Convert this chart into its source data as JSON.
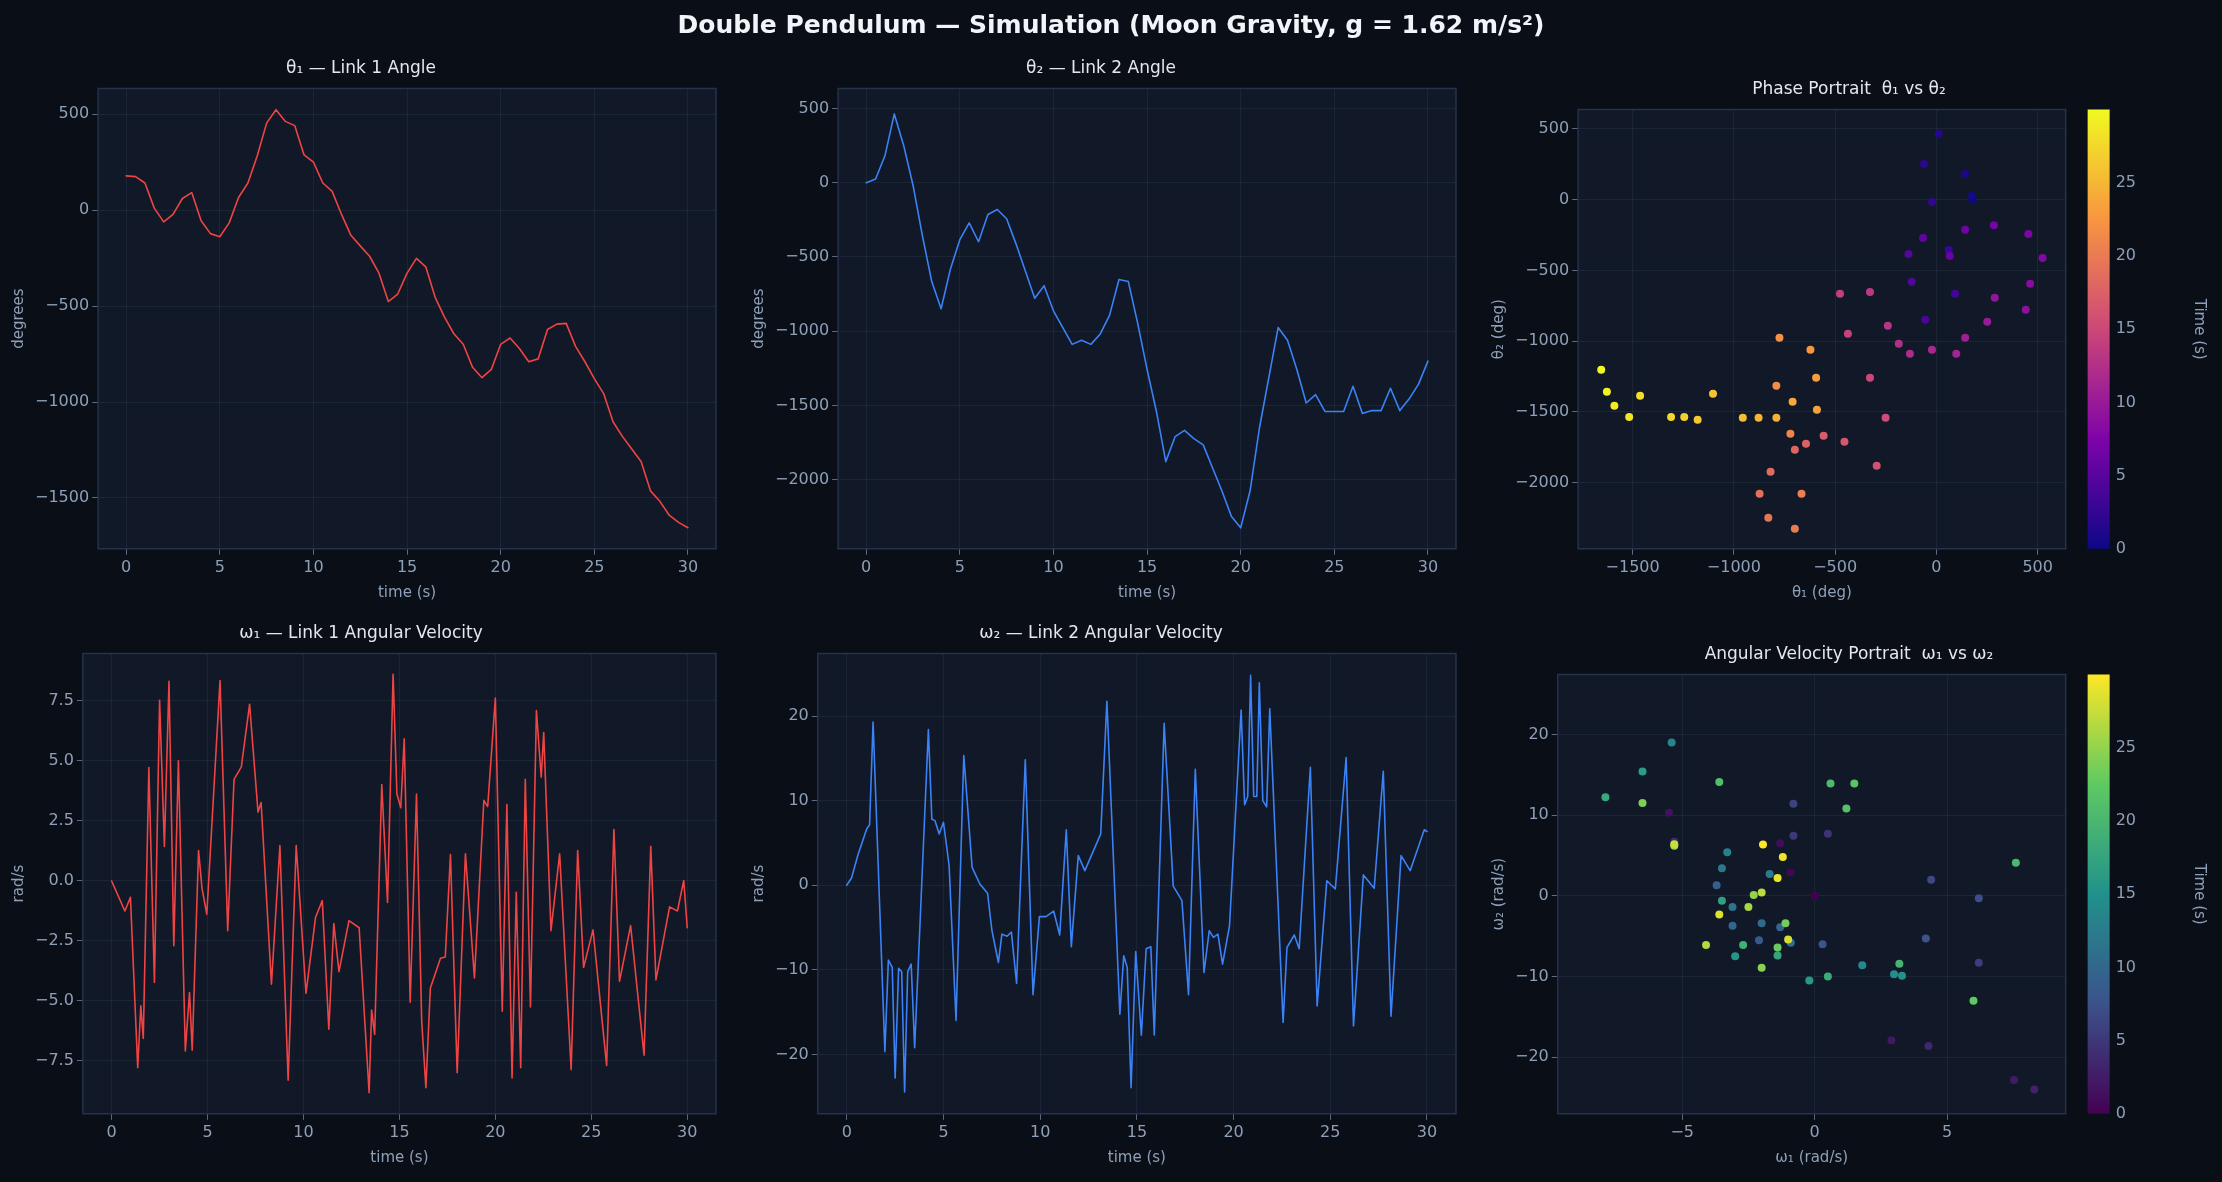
{
  "chart_data": [
    {
      "type": "line",
      "title": "θ₁ — Link 1 Angle",
      "annotations": [
        "Double Pendulum — Simulation (Moon Gravity, g = 1.62 m/s²)"
      ],
      "xlabel": "time (s)",
      "ylabel": "degrees",
      "marker": "none",
      "line_style": "solid",
      "grid": true,
      "x": [
        0,
        0.5,
        1,
        1.5,
        2,
        2.5,
        3,
        3.5,
        4,
        4.5,
        5,
        5.5,
        6,
        6.5,
        7,
        7.5,
        8,
        8.5,
        9,
        9.5,
        10,
        10.5,
        11,
        11.5,
        12,
        12.5,
        13,
        13.5,
        14,
        14.5,
        15,
        15.5,
        16,
        16.5,
        17,
        17.5,
        18,
        18.5,
        19,
        19.5,
        20,
        20.5,
        21,
        21.5,
        22,
        22.5,
        23,
        23.5,
        24,
        24.5,
        25,
        25.5,
        26,
        26.5,
        27,
        27.5,
        28,
        28.5,
        29,
        29.5,
        30
      ],
      "series": [
        {
          "color": "#ef4444",
          "values": [
            179,
            175,
            142,
            11,
            -61,
            -22,
            61,
            92,
            -55,
            -122,
            -138,
            -66,
            66,
            142,
            284,
            454,
            524,
            463,
            441,
            288,
            251,
            142,
            98,
            -22,
            -131,
            -186,
            -240,
            -328,
            -476,
            -437,
            -328,
            -251,
            -295,
            -454,
            -557,
            -644,
            -699,
            -819,
            -873,
            -830,
            -699,
            -666,
            -721,
            -790,
            -775,
            -622,
            -594,
            -590,
            -710,
            -790,
            -878,
            -956,
            -1103,
            -1179,
            -1245,
            -1310,
            -1463,
            -1517,
            -1590,
            -1627,
            -1655
          ]
        }
      ],
      "xlim": [
        -1.5,
        31.5
      ],
      "xticks": [
        0,
        5,
        10,
        15,
        20,
        25,
        30
      ],
      "ylim": [
        -1765,
        635
      ],
      "yticks": [
        {
          "value": -1500,
          "label": "−1500"
        },
        {
          "value": -1000,
          "label": "−1000"
        },
        {
          "value": -500,
          "label": "−500"
        },
        0,
        500
      ]
    },
    {
      "type": "line",
      "title": "θ₂ — Link 2 Angle",
      "xlabel": "time (s)",
      "ylabel": "degrees",
      "marker": "none",
      "line_style": "solid",
      "grid": true,
      "x": [
        0,
        0.5,
        1,
        1.5,
        2,
        2.5,
        3,
        3.5,
        4,
        4.5,
        5,
        5.5,
        6,
        6.5,
        7,
        7.5,
        8,
        8.5,
        9,
        9.5,
        10,
        10.5,
        11,
        11.5,
        12,
        12.5,
        13,
        13.5,
        14,
        14.5,
        15,
        15.5,
        16,
        16.5,
        17,
        17.5,
        18,
        18.5,
        19,
        19.5,
        20,
        20.5,
        21,
        21.5,
        22,
        22.5,
        23,
        23.5,
        24,
        24.5,
        25,
        25.5,
        26,
        26.5,
        27,
        27.5,
        28,
        28.5,
        29,
        29.5,
        30
      ],
      "series": [
        {
          "color": "#3b82f6",
          "values": [
            0,
            25,
            181,
            463,
            251,
            -17,
            -356,
            -666,
            -849,
            -581,
            -384,
            -271,
            -398,
            -214,
            -181,
            -243,
            -412,
            -595,
            -779,
            -694,
            -863,
            -976,
            -1089,
            -1061,
            -1089,
            -1019,
            -892,
            -652,
            -666,
            -948,
            -1258,
            -1541,
            -1879,
            -1710,
            -1668,
            -1724,
            -1766,
            -1922,
            -2077,
            -2246,
            -2325,
            -2077,
            -1654,
            -1315,
            -976,
            -1061,
            -1258,
            -1484,
            -1428,
            -1541,
            -1541,
            -1541,
            -1371,
            -1555,
            -1535,
            -1535,
            -1385,
            -1535,
            -1456,
            -1357,
            -1202
          ]
        }
      ],
      "xlim": [
        -1.5,
        31.5
      ],
      "xticks": [
        0,
        5,
        10,
        15,
        20,
        25,
        30
      ],
      "ylim": [
        -2466,
        635
      ],
      "yticks": [
        {
          "value": -2000,
          "label": "−2000"
        },
        {
          "value": -1500,
          "label": "−1500"
        },
        {
          "value": -1000,
          "label": "−1000"
        },
        {
          "value": -500,
          "label": "−500"
        },
        0,
        500
      ]
    },
    {
      "type": "scatter",
      "title": "Phase Portrait  θ₁ vs θ₂",
      "xlabel": "θ₁ (deg)",
      "ylabel": "θ₂ (deg)",
      "clabel": "Time (s)",
      "marker": "circle",
      "grid": true,
      "series": [
        {
          "x": [
            179,
            175,
            142,
            11,
            -61,
            -22,
            61,
            92,
            -55,
            -122,
            -138,
            -66,
            66,
            142,
            284,
            454,
            524,
            463,
            441,
            288,
            251,
            142,
            98,
            -22,
            -131,
            -186,
            -240,
            -328,
            -476,
            -437,
            -328,
            -251,
            -295,
            -454,
            -557,
            -644,
            -699,
            -819,
            -873,
            -830,
            -699,
            -666,
            -721,
            -790,
            -775,
            -622,
            -594,
            -590,
            -710,
            -790,
            -878,
            -956,
            -1103,
            -1179,
            -1245,
            -1310,
            -1463,
            -1517,
            -1590,
            -1627,
            -1655
          ],
          "values": [
            0,
            25,
            181,
            463,
            251,
            -17,
            -356,
            -666,
            -849,
            -581,
            -384,
            -271,
            -398,
            -214,
            -181,
            -243,
            -412,
            -595,
            -779,
            -694,
            -863,
            -976,
            -1089,
            -1061,
            -1089,
            -1019,
            -892,
            -652,
            -666,
            -948,
            -1258,
            -1541,
            -1879,
            -1710,
            -1668,
            -1724,
            -1766,
            -1922,
            -2077,
            -2246,
            -2325,
            -2077,
            -1654,
            -1315,
            -976,
            -1061,
            -1258,
            -1484,
            -1428,
            -1541,
            -1541,
            -1541,
            -1371,
            -1555,
            -1535,
            -1535,
            -1385,
            -1535,
            -1456,
            -1357,
            -1202
          ],
          "cvalues": [
            0,
            0.5,
            1,
            1.5,
            2,
            2.5,
            3,
            3.5,
            4,
            4.5,
            5,
            5.5,
            6,
            6.5,
            7,
            7.5,
            8,
            8.5,
            9,
            9.5,
            10,
            10.5,
            11,
            11.5,
            12,
            12.5,
            13,
            13.5,
            14,
            14.5,
            15,
            15.5,
            16,
            16.5,
            17,
            17.5,
            18,
            18.5,
            19,
            19.5,
            20,
            20.5,
            21,
            21.5,
            22,
            22.5,
            23,
            23.5,
            24,
            24.5,
            25,
            25.5,
            26,
            26.5,
            27,
            27.5,
            28,
            28.5,
            29,
            29.5,
            30
          ]
        }
      ],
      "xlim": [
        -1769,
        638
      ],
      "xticks": [
        {
          "value": -1500,
          "label": "−1500"
        },
        {
          "value": -1000,
          "label": "−1000"
        },
        {
          "value": -500,
          "label": "−500"
        },
        0,
        500
      ],
      "ylim": [
        -2466,
        635
      ],
      "yticks": [
        {
          "value": -2000,
          "label": "−2000"
        },
        {
          "value": -1500,
          "label": "−1500"
        },
        {
          "value": -1000,
          "label": "−1000"
        },
        {
          "value": -500,
          "label": "−500"
        },
        0,
        500
      ],
      "clim": [
        0,
        30
      ],
      "cticks": [
        0,
        5,
        10,
        15,
        20,
        25
      ]
    },
    {
      "type": "line",
      "title": "ω₁ — Link 1 Angular Velocity",
      "xlabel": "time (s)",
      "ylabel": "rad/s",
      "marker": "none",
      "line_style": "solid",
      "grid": true,
      "series": [
        {
          "color": "#ef4444",
          "x": [
            0,
            0.69,
            0.98,
            1.36,
            1.52,
            1.65,
            1.94,
            2.23,
            2.5,
            2.75,
            2.99,
            3.24,
            3.48,
            3.84,
            4.06,
            4.2,
            4.53,
            4.71,
            4.96,
            5.65,
            6.05,
            6.38,
            6.76,
            7.19,
            7.63,
            7.79,
            8.33,
            8.77,
            9.2,
            9.62,
            10.13,
            10.63,
            10.98,
            11.32,
            11.58,
            11.85,
            12.37,
            12.9,
            13.42,
            13.55,
            13.71,
            14.08,
            14.38,
            14.67,
            14.87,
            15.07,
            15.25,
            15.56,
            15.89,
            16.16,
            16.38,
            16.61,
            17.14,
            17.39,
            17.66,
            18.01,
            18.44,
            18.91,
            19.4,
            19.6,
            20,
            20.36,
            20.6,
            20.87,
            21.09,
            21.32,
            21.56,
            21.83,
            22.14,
            22.39,
            22.52,
            22.9,
            23.35,
            23.95,
            24.29,
            24.6,
            25.09,
            25.8,
            26.18,
            26.47,
            27.05,
            27.75,
            28.1,
            28.37,
            29.08,
            29.49,
            29.82,
            30
          ],
          "values": [
            0,
            -1.25,
            -0.68,
            -7.78,
            -5.2,
            -6.56,
            4.72,
            -4.23,
            7.53,
            1.44,
            8.32,
            -2.7,
            5.01,
            -7.08,
            -4.65,
            -7.05,
            1.27,
            -0.3,
            -1.39,
            8.35,
            -2.07,
            4.23,
            4.75,
            7.36,
            2.87,
            3.27,
            -4.3,
            1.48,
            -8.3,
            1.48,
            -4.68,
            -1.51,
            -0.82,
            -6.18,
            -1.77,
            -3.78,
            -1.65,
            -1.95,
            -8.82,
            -5.38,
            -6.39,
            4.02,
            -0.9,
            8.61,
            3.62,
            3.05,
            5.92,
            -5.05,
            3.62,
            -5.83,
            -8.61,
            -4.47,
            -3.22,
            -3.17,
            1.1,
            -7.99,
            1.13,
            -4.04,
            3.36,
            3.1,
            7.62,
            -5.43,
            3.18,
            -8.21,
            -0.47,
            -7.78,
            4.23,
            -5.25,
            7.1,
            4.32,
            6.18,
            -2.07,
            1.13,
            -7.86,
            1.27,
            -3.6,
            -2.04,
            -7.69,
            2.14,
            -4.18,
            -1.86,
            -7.26,
            1.44,
            -4.12,
            -1.08,
            -1.25,
            0.02,
            -1.95
          ]
        }
      ],
      "xlim": [
        -1.5,
        31.5
      ],
      "xticks": [
        0,
        5,
        10,
        15,
        20,
        25,
        30
      ],
      "ylim": [
        -9.7,
        9.48
      ],
      "yticks": [
        {
          "value": -7.5,
          "label": "−7.5"
        },
        {
          "value": -5,
          "label": "−5.0"
        },
        {
          "value": -2.5,
          "label": "−2.5"
        },
        {
          "value": 0,
          "label": "0.0"
        },
        2.5,
        {
          "value": 5,
          "label": "5.0"
        },
        7.5
      ]
    },
    {
      "type": "line",
      "title": "ω₂ — Link 2 Angular Velocity",
      "xlabel": "time (s)",
      "ylabel": "rad/s",
      "marker": "none",
      "line_style": "solid",
      "grid": true,
      "series": [
        {
          "color": "#3b82f6",
          "x": [
            0,
            0.25,
            0.58,
            1.03,
            1.18,
            1.36,
            1.97,
            2.15,
            2.35,
            2.5,
            2.68,
            2.84,
            2.99,
            3.15,
            3.33,
            3.51,
            4.22,
            4.4,
            4.56,
            4.78,
            5,
            5.29,
            5.65,
            6.05,
            6.48,
            6.88,
            7.28,
            7.5,
            7.84,
            8.02,
            8.29,
            8.51,
            8.78,
            9.23,
            9.63,
            9.96,
            10.3,
            10.7,
            11.01,
            11.35,
            11.61,
            11.97,
            12.31,
            13.13,
            13.45,
            14.12,
            14.32,
            14.5,
            14.7,
            14.94,
            15.23,
            15.48,
            15.72,
            15.9,
            16.41,
            16.88,
            17.33,
            17.67,
            18.02,
            18.47,
            18.74,
            18.96,
            19.19,
            19.43,
            19.79,
            20.39,
            20.57,
            20.73,
            20.88,
            21.04,
            21.2,
            21.33,
            21.51,
            21.71,
            21.87,
            22.56,
            22.76,
            23.14,
            23.39,
            23.97,
            24.32,
            24.82,
            25.26,
            25.82,
            26.2,
            26.71,
            27.27,
            27.74,
            28.14,
            28.66,
            29.13,
            29.86,
            30
          ],
          "values": [
            0,
            0.89,
            3.6,
            6.66,
            7.15,
            19.28,
            -19.67,
            -8.83,
            -9.71,
            -22.78,
            -9.81,
            -10.21,
            -24.41,
            -10.21,
            -9.32,
            -19.18,
            18.39,
            7.79,
            7.64,
            6.07,
            7.45,
            2.37,
            -15.98,
            15.34,
            2.12,
            0.15,
            -0.94,
            -5.28,
            -9.12,
            -5.77,
            -6.02,
            -5.52,
            -11.59,
            14.84,
            -12.92,
            -3.7,
            -3.7,
            -3.06,
            -5.87,
            6.56,
            -7.25,
            3.5,
            1.73,
            6.07,
            21.75,
            -15.24,
            -8.33,
            -9.71,
            -23.92,
            -7.84,
            -17.7,
            -7.5,
            -7.25,
            -17.7,
            19.13,
            -0.1,
            -1.82,
            -12.92,
            13.71,
            -10.31,
            -5.37,
            -6.16,
            -5.77,
            -9.32,
            -4.78,
            20.71,
            9.52,
            10.5,
            24.8,
            10.5,
            10.5,
            23.92,
            10.01,
            9.27,
            20.86,
            -16.22,
            -7.35,
            -5.87,
            -7.5,
            13.95,
            -14.25,
            0.54,
            -0.44,
            15.09,
            -16.62,
            1.23,
            -0.35,
            13.46,
            -15.48,
            3.5,
            1.73,
            6.56,
            6.36
          ]
        }
      ],
      "xlim": [
        -1.5,
        31.5
      ],
      "xticks": [
        0,
        5,
        10,
        15,
        20,
        25,
        30
      ],
      "ylim": [
        -27,
        27.4
      ],
      "yticks": [
        {
          "value": -20,
          "label": "−20"
        },
        {
          "value": -10,
          "label": "−10"
        },
        0,
        10,
        20
      ]
    },
    {
      "type": "scatter",
      "title": "Angular Velocity Portrait  ω₁ vs ω₂",
      "xlabel": "ω₁ (rad/s)",
      "ylabel": "ω₂ (rad/s)",
      "clabel": "Time (s)",
      "marker": "circle",
      "grid": true,
      "series": [
        {
          "x": [
            0,
            -0.91,
            -1.3,
            -5.5,
            2.9,
            7.53,
            8.3,
            4.3,
            -5.3,
            0.5,
            -0.8,
            6.2,
            -0.8,
            4.4,
            6.2,
            4.2,
            0.3,
            -2.1,
            -3.7,
            -1.3,
            -3.1,
            -2,
            -0.9,
            -3.1,
            -3.5,
            -1.7,
            -3.3,
            -5.4,
            1.8,
            3,
            3.3,
            -3,
            -0.2,
            -6.5,
            -3.5,
            -1.4,
            -7.9,
            0.5,
            -2.7,
            3.2,
            7.6,
            0.6,
            -3.6,
            1.2,
            1.5,
            6,
            -1.4,
            -1.1,
            -6.5,
            -2,
            -2.3,
            -5.3,
            -2.5,
            -4.1,
            -2,
            -5.3,
            -1,
            -3.6,
            -1.4,
            -1.2,
            -1.95
          ],
          "values": [
            0,
            2.9,
            6.5,
            10.3,
            -17.9,
            -22.8,
            -24,
            -18.6,
            6.7,
            7.7,
            7.45,
            -8.3,
            11.4,
            2,
            -0.3,
            -5.3,
            -6,
            -5.5,
            1.3,
            -3.9,
            -3.7,
            -3.4,
            -5.8,
            -1.4,
            3.4,
            2.7,
            5.4,
            19,
            -8.6,
            -9.7,
            -9.9,
            -7.5,
            -10.5,
            15.4,
            -0.6,
            -7.4,
            12.2,
            -10,
            -6.1,
            -8.4,
            4.1,
            13.9,
            14.1,
            10.8,
            13.9,
            -13,
            -6.4,
            -3.4,
            11.5,
            -8.9,
            0.1,
            6.2,
            -1.4,
            -6.1,
            0.4,
            6.4,
            -5.4,
            -2.3,
            2.2,
            4.8,
            6.36
          ],
          "cvalues": [
            0,
            0.5,
            1,
            1.5,
            2,
            2.5,
            3,
            3.5,
            4,
            4.5,
            5,
            5.5,
            6,
            6.5,
            7,
            7.5,
            8,
            8.5,
            9,
            9.5,
            10,
            10.5,
            11,
            11.5,
            12,
            12.5,
            13,
            13.5,
            14,
            14.5,
            15,
            15.5,
            16,
            16.5,
            17,
            17.5,
            18,
            18.5,
            19,
            19.5,
            20,
            20.5,
            21,
            21.5,
            22,
            22.5,
            23,
            23.5,
            24,
            24.5,
            25,
            25.5,
            26,
            26.5,
            27,
            27.5,
            28,
            28.5,
            29,
            29.5,
            30
          ]
        }
      ],
      "xlim": [
        -9.7,
        9.48
      ],
      "xticks": [
        {
          "value": -5,
          "label": "−5"
        },
        0,
        5
      ],
      "ylim": [
        -27,
        27.4
      ],
      "yticks": [
        {
          "value": -20,
          "label": "−20"
        },
        {
          "value": -10,
          "label": "−10"
        },
        0,
        10,
        20
      ],
      "clim": [
        0,
        30
      ],
      "cticks": [
        0,
        5,
        10,
        15,
        20,
        25
      ]
    }
  ]
}
